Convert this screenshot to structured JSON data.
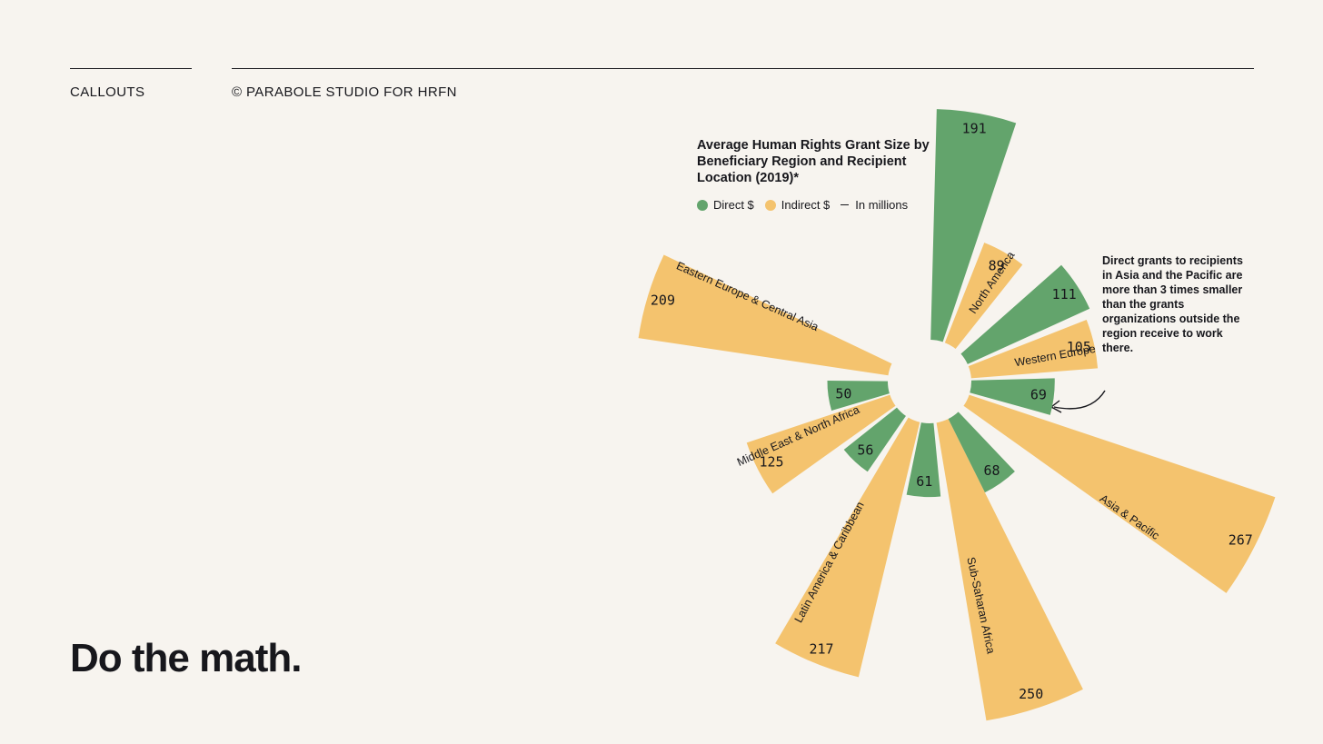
{
  "header": {
    "section_label": "CALLOUTS",
    "credit": "© PARABOLE STUDIO FOR HRFN"
  },
  "headline": "Do the math.",
  "annotation": "Direct grants to recipients in Asia and the Pacific are more than 3 times smaller than the grants organizations outside the region receive to work there.",
  "colors": {
    "direct": "#63a46c",
    "indirect": "#f4c36e",
    "background": "#f7f4ef",
    "text": "#17171c"
  },
  "chart_data": {
    "type": "radial-bar",
    "title": "Average Human Rights Grant Size by Beneficiary Region and Recipient Location (2019)*",
    "legend": [
      {
        "name": "Direct $",
        "color": "#63a46c"
      },
      {
        "name": "Indirect $",
        "color": "#f4c36e"
      }
    ],
    "unit_note": "In millions",
    "regions": [
      {
        "name": "North America",
        "direct": 191,
        "indirect": 89
      },
      {
        "name": "Western Europe",
        "direct": 111,
        "indirect": 105
      },
      {
        "name": "Asia & Pacific",
        "direct": 69,
        "indirect": 267
      },
      {
        "name": "Sub-Saharan Africa",
        "direct": 68,
        "indirect": 250
      },
      {
        "name": "Latin America & Caribbean",
        "direct": 61,
        "indirect": 217
      },
      {
        "name": "Middle East & North Africa",
        "direct": 56,
        "indirect": 125
      },
      {
        "name": "Eastern Europe & Central Asia",
        "direct": 50,
        "indirect": 209
      }
    ]
  }
}
